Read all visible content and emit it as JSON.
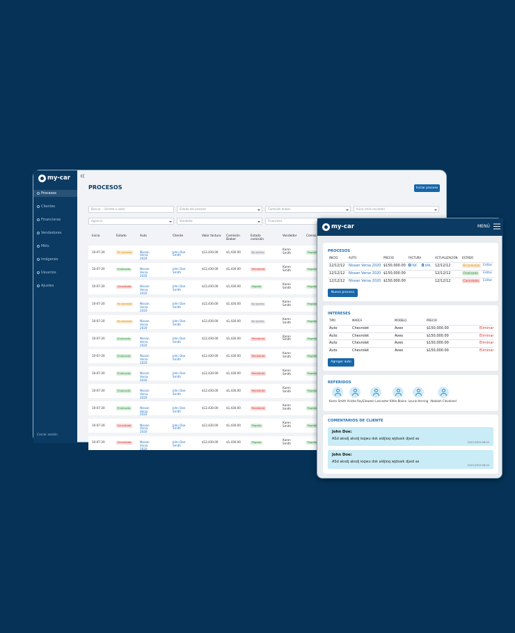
{
  "desktop": {
    "logo": "my-car",
    "nav": [
      "Procesos",
      "Clientes",
      "Financieras",
      "Vendedores",
      "Mkts",
      "Imágenes",
      "Usuarios",
      "Ajustes"
    ],
    "logout": "Cerrar sesión",
    "title": "PROCESOS",
    "button": "Iniciar proceso",
    "filters": [
      "Buscar... (cliente o auto)",
      "Estado del proceso",
      "Comisión broker",
      "Inicio (más reciente)",
      "Agencia",
      "Vendedor",
      "Financiera"
    ],
    "columns": [
      "Inicio",
      "Estado",
      "Auto",
      "Cliente",
      "Valor factura",
      "Comisión Broker",
      "Estado comisión",
      "Vendedor",
      "Comisión"
    ],
    "rows": [
      [
        "10-07-20",
        {
          "text": "En proceso",
          "color": "#e08a00"
        },
        "Nissan Versa 2020",
        "John Doe Smith",
        "$12,430.00",
        "$1,430.00",
        {
          "text": "No aplica",
          "color": "#7a8590"
        },
        "Karen Smith",
        {
          "text": "Pagado",
          "color": "#2f9a3a"
        }
      ],
      [
        "10-07-20",
        {
          "text": "Finalizado",
          "color": "#2f9a3a"
        },
        "Nissan Versa 2020",
        "John Doe Smith",
        "$12,430.00",
        "$1,430.00",
        {
          "text": "Pendiente",
          "color": "#d9342b"
        },
        "Karen Smith",
        {
          "text": "Pagado",
          "color": "#2f9a3a"
        }
      ],
      [
        "10-07-20",
        {
          "text": "Cancelado",
          "color": "#d9342b"
        },
        "Nissan Versa 2020",
        "John Doe Smith",
        "$12,430.00",
        "$1,430.00",
        {
          "text": "Pagado",
          "color": "#2f9a3a"
        },
        "Karen Smith",
        {
          "text": "Pagado",
          "color": "#2f9a3a"
        }
      ],
      [
        "10-07-20",
        {
          "text": "En proceso",
          "color": "#e08a00"
        },
        "Nissan Versa 2020",
        "John Doe Smith",
        "$12,430.00",
        "$1,430.00",
        {
          "text": "No aplica",
          "color": "#7a8590"
        },
        "Karen Smith",
        {
          "text": "Pagado",
          "color": "#2f9a3a"
        }
      ],
      [
        "10-07-20",
        {
          "text": "En proceso",
          "color": "#e08a00"
        },
        "Nissan Versa 2020",
        "John Doe Smith",
        "$12,430.00",
        "$1,430.00",
        {
          "text": "No aplica",
          "color": "#7a8590"
        },
        "Karen Smith",
        {
          "text": "Pagado",
          "color": "#2f9a3a"
        }
      ],
      [
        "10-07-20",
        {
          "text": "Finalizado",
          "color": "#2f9a3a"
        },
        "Nissan Versa 2020",
        "John Doe Smith",
        "$12,430.00",
        "$1,430.00",
        {
          "text": "Pendiente",
          "color": "#d9342b"
        },
        "Karen Smith",
        {
          "text": "Pagado",
          "color": "#2f9a3a"
        }
      ],
      [
        "10-07-20",
        {
          "text": "Finalizado",
          "color": "#2f9a3a"
        },
        "Nissan Versa 2020",
        "John Doe Smith",
        "$12,430.00",
        "$1,430.00",
        {
          "text": "Pendiente",
          "color": "#d9342b"
        },
        "Karen Smith",
        {
          "text": "Pagado",
          "color": "#2f9a3a"
        }
      ],
      [
        "10-07-20",
        {
          "text": "Finalizado",
          "color": "#2f9a3a"
        },
        "Nissan Versa 2020",
        "John Doe Smith",
        "$12,430.00",
        "$1,430.00",
        {
          "text": "Pendiente",
          "color": "#d9342b"
        },
        "Karen Smith",
        {
          "text": "Pagado",
          "color": "#2f9a3a"
        }
      ],
      [
        "10-07-20",
        {
          "text": "Finalizado",
          "color": "#2f9a3a"
        },
        "Nissan Versa 2020",
        "John Doe Smith",
        "$12,430.00",
        "$1,430.00",
        {
          "text": "Pendiente",
          "color": "#d9342b"
        },
        "Karen Smith",
        {
          "text": "Pagado",
          "color": "#2f9a3a"
        }
      ],
      [
        "10-07-20",
        {
          "text": "Finalizado",
          "color": "#2f9a3a"
        },
        "Nissan Versa 2020",
        "John Doe Smith",
        "$12,430.00",
        "$1,430.00",
        {
          "text": "Pendiente",
          "color": "#d9342b"
        },
        "Karen Smith",
        {
          "text": "Pagado",
          "color": "#2f9a3a"
        }
      ],
      [
        "10-07-20",
        {
          "text": "Cancelado",
          "color": "#d9342b"
        },
        "Nissan Versa 2020",
        "John Doe Smith",
        "$12,430.00",
        "$1,430.00",
        {
          "text": "Pagado",
          "color": "#2f9a3a"
        },
        "Karen Smith",
        {
          "text": "Pagado",
          "color": "#2f9a3a"
        }
      ],
      [
        "10-07-20",
        {
          "text": "Cancelado",
          "color": "#d9342b"
        },
        "Nissan Versa 2020",
        "John Doe Smith",
        "$12,430.00",
        "$1,430.00",
        {
          "text": "Pagado",
          "color": "#2f9a3a"
        },
        "Karen Smith",
        {
          "text": "Pagado",
          "color": "#2f9a3a"
        }
      ]
    ]
  },
  "mobile": {
    "logo": "my-car",
    "menu": "MENÚ",
    "procesos": {
      "title": "PROCESOS",
      "columns": [
        "INICIO",
        "AUTO",
        "PRECIO",
        "FACTURA",
        "ACTUALIZACIÓN",
        "ESTADO"
      ],
      "rows": [
        [
          "12/12/12",
          "Nissan Versa 2020",
          "$150,000.00",
          [
            "PDF",
            "XML"
          ],
          "12/12/12",
          {
            "text": "En proceso",
            "color": "#e08a00"
          },
          "Editar"
        ],
        [
          "12/12/12",
          "Nissan Versa 2020",
          "$150,000.00",
          [],
          "12/12/12",
          {
            "text": "Finalizado",
            "color": "#2f9a3a"
          },
          "Editar"
        ],
        [
          "12/12/12",
          "Nissan Versa 2020",
          "$150,000.00",
          [],
          "12/12/12",
          {
            "text": "Cancelado",
            "color": "#d9342b"
          },
          "Editar"
        ]
      ],
      "button": "Nuevo proceso"
    },
    "intereses": {
      "title": "INTERESES",
      "columns": [
        "TIPO",
        "MARCA",
        "MODELO",
        "PRECIO"
      ],
      "rows": [
        [
          "Auto",
          "Chevrolet",
          "Aveo",
          "$150,000.00",
          "Eliminar"
        ],
        [
          "Auto",
          "Chevrolet",
          "Aveo",
          "$150,000.00",
          "Eliminar"
        ],
        [
          "Auto",
          "Chevrolet",
          "Aveo",
          "$150,000.00",
          "Eliminar"
        ],
        [
          "Auto",
          "Chevrolet",
          "Aveo",
          "$150,000.00",
          "Eliminar"
        ]
      ],
      "button": "Agregar auto"
    },
    "referidos": {
      "title": "REFERIDOS",
      "names": [
        "Karen Smith",
        "Kristie Ray",
        "Eloween Lancaster",
        "Kittie Blaine",
        "Laurie Herring",
        "Abdalah Cleveland"
      ]
    },
    "comentarios": {
      "title": "COMENTARIOS DE CLIENTE",
      "items": [
        {
          "author": "John Doe:",
          "text": "ASd aksdj aksdj ioqwu dsk aldjioq wjdsaik djaid as",
          "date": "22/01/2020 08:43"
        },
        {
          "author": "John Doe:",
          "text": "ASd aksdj aksdj ioqwu dsk aldjioq wjdsaik djaid as",
          "date": "22/01/2020 08:43"
        }
      ]
    }
  }
}
